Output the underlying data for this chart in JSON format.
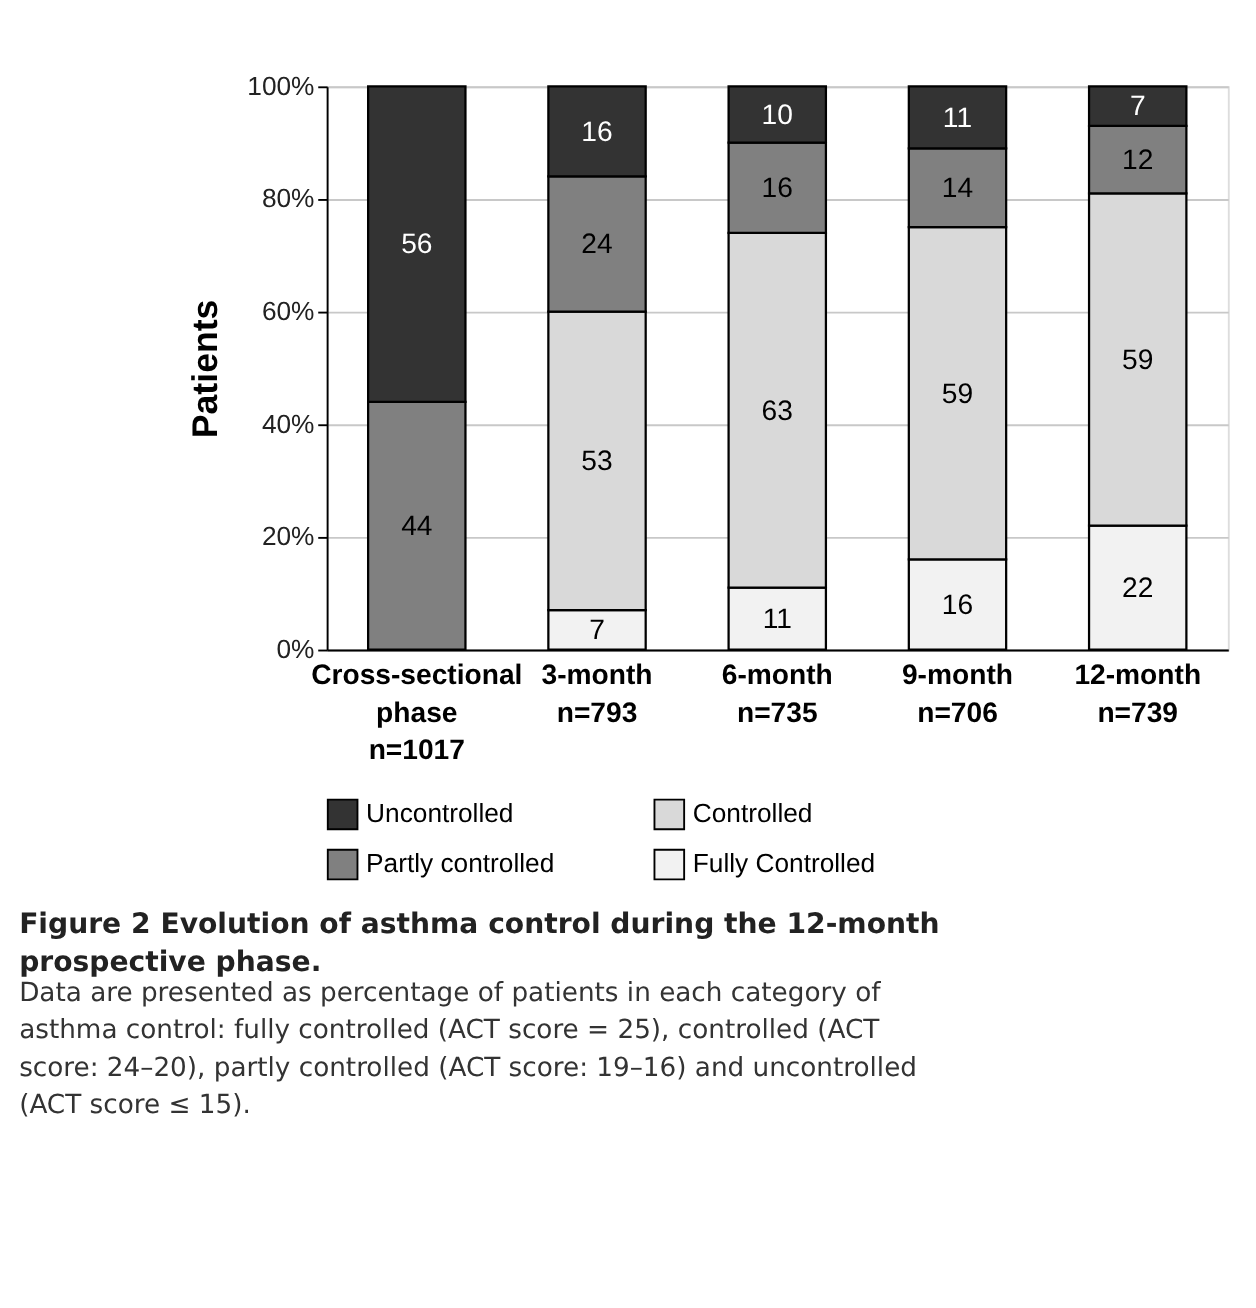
{
  "chart_data": {
    "type": "bar",
    "stacked": true,
    "data_labels": true,
    "grid": "y",
    "legend": "bottom",
    "title": "Figure 2 Evolution of asthma control during the 12-month prospective phase.",
    "annotations": [
      "Data are presented as percentage of patients in each category of asthma control: fully controlled (ACT score = 25), controlled (ACT score: 24–20), partly controlled (ACT score: 19–16) and uncontrolled (ACT score ≤ 15)."
    ],
    "ylabel": "Patients",
    "categories": [
      "Cross-sectional\nphase\nn=1017",
      "3-month\nn=793",
      "6-month\nn=735",
      "9-month\nn=706",
      "12-month\nn=739"
    ],
    "ylim": [
      0,
      100
    ],
    "yticks": [
      {
        "value": 0,
        "label": "0%"
      },
      {
        "value": 20,
        "label": "20%"
      },
      {
        "value": 40,
        "label": "40%"
      },
      {
        "value": 60,
        "label": "60%"
      },
      {
        "value": 80,
        "label": "80%"
      },
      {
        "value": 100,
        "label": "100%"
      }
    ],
    "series": [
      {
        "name": "Fully Controlled",
        "color": "#f2f2f2",
        "values": [
          null,
          7,
          11,
          16,
          22
        ]
      },
      {
        "name": "Controlled",
        "color": "#d9d9d9",
        "values": [
          null,
          53,
          63,
          59,
          59
        ]
      },
      {
        "name": "Partly controlled",
        "color": "#808080",
        "values": [
          44,
          24,
          16,
          14,
          12
        ]
      },
      {
        "name": "Uncontrolled",
        "color": "#333333",
        "values": [
          56,
          16,
          10,
          11,
          7
        ]
      }
    ]
  }
}
